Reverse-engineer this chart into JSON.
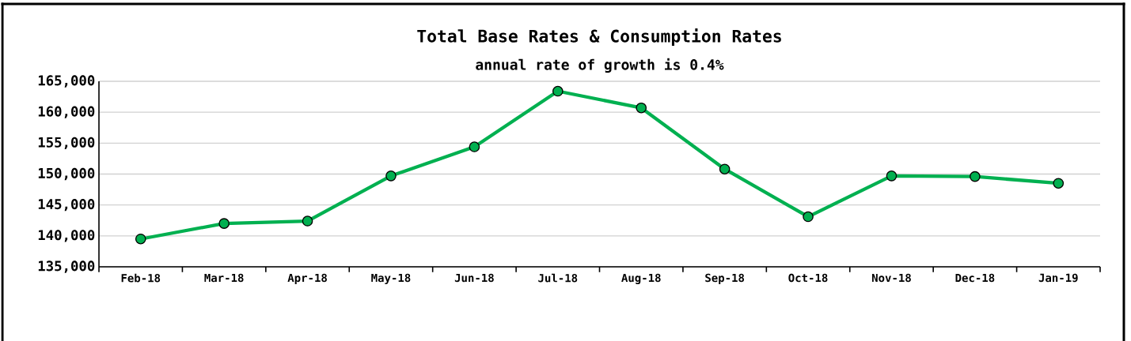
{
  "chart_data": {
    "type": "line",
    "title": "Total Base Rates & Consumption Rates",
    "subtitle": "annual rate of growth is 0.4%",
    "categories": [
      "Feb-18",
      "Mar-18",
      "Apr-18",
      "May-18",
      "Jun-18",
      "Jul-18",
      "Aug-18",
      "Sep-18",
      "Oct-18",
      "Nov-18",
      "Dec-18",
      "Jan-19"
    ],
    "series": [
      {
        "color": "#00b050",
        "values": [
          139500,
          142000,
          142400,
          149700,
          154400,
          163400,
          160700,
          150800,
          143100,
          149700,
          149600,
          148500
        ]
      }
    ],
    "ylim": [
      135000,
      165000
    ],
    "yticks": [
      {
        "value": 135000,
        "label": "135,000"
      },
      {
        "value": 140000,
        "label": "140,000"
      },
      {
        "value": 145000,
        "label": "145,000"
      },
      {
        "value": 150000,
        "label": "150,000"
      },
      {
        "value": 155000,
        "label": "155,000"
      },
      {
        "value": 160000,
        "label": "160,000"
      },
      {
        "value": 165000,
        "label": "165,000"
      }
    ],
    "grid": "y",
    "marker": "circle",
    "line_style": "solid"
  }
}
